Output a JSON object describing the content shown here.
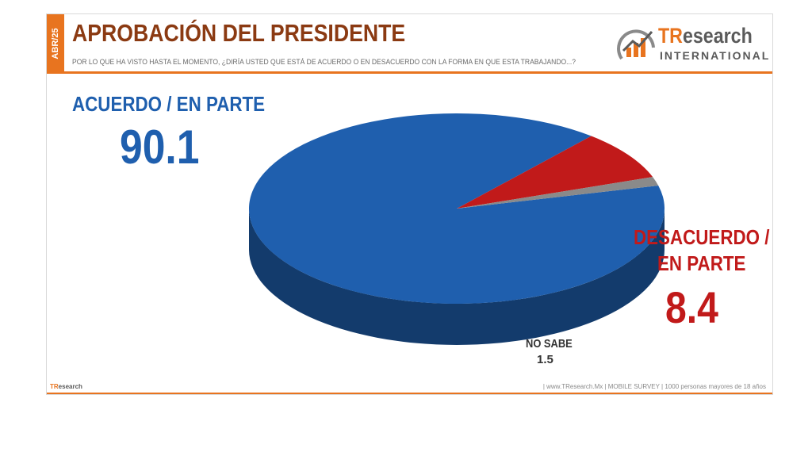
{
  "header": {
    "date_tab": "ABR/25",
    "title": "APROBACIÓN DEL PRESIDENTE",
    "subtitle": "POR LO QUE HA VISTO HASTA EL MOMENTO, ¿DIRÍA USTED QUE ESTÁ DE ACUERDO O EN DESACUERDO CON LA FORMA EN QUE ESTA TRABAJANDO...?"
  },
  "logo": {
    "name_prefix": "TR",
    "name_rest": "esearch",
    "subtitle": "INTERNATIONAL"
  },
  "footer": {
    "logo_prefix": "TR",
    "logo_rest": "esearch",
    "text": "| www.TResearch.Mx | MOBILE SURVEY | 1000 personas mayores de 18 años"
  },
  "colors": {
    "accent": "#e8741f",
    "title": "#8b3a12",
    "agree": "#1f5fae",
    "disagree": "#c11a1a",
    "unknown": "#8a8a8a"
  },
  "chart_data": {
    "type": "pie",
    "style": "3d",
    "slices": [
      {
        "label": "ACUERDO / EN PARTE",
        "value": 90.1,
        "value_label": "90.1",
        "color": "#1f5fae"
      },
      {
        "label": "DESACUERDO / EN PARTE",
        "label_lines": [
          "DESACUERDO /",
          "EN PARTE"
        ],
        "value": 8.4,
        "value_label": "8.4",
        "color": "#c11a1a"
      },
      {
        "label": "NO SABE",
        "value": 1.5,
        "value_label": "1.5",
        "color": "#8a8a8a"
      }
    ],
    "start_angle_deg": -14
  }
}
